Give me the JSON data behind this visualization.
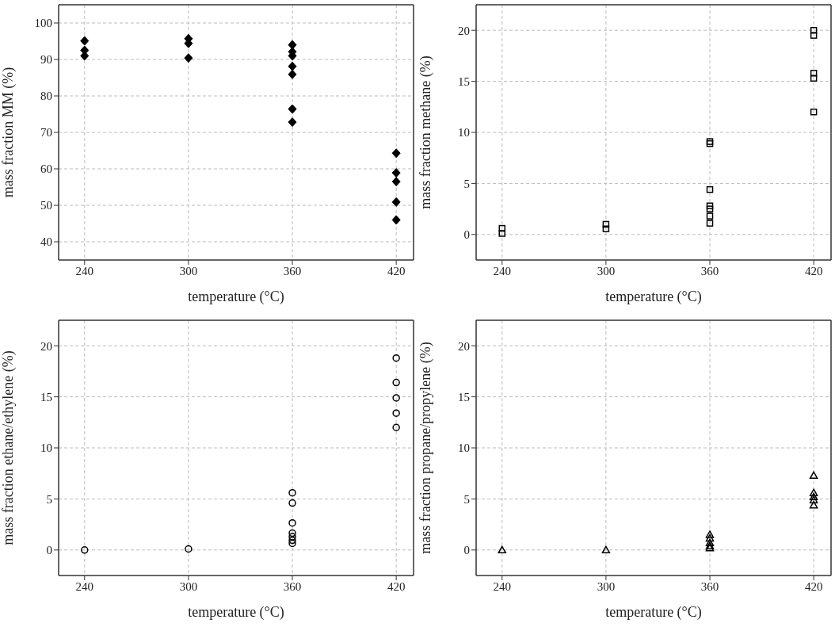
{
  "chart_data": [
    {
      "type": "scatter",
      "xlabel": "temperature (°C)",
      "ylabel": "mass fraction MM (%)",
      "marker": "diamond",
      "grid": true,
      "xlim": [
        225,
        430
      ],
      "xticks": [
        240,
        300,
        360,
        420
      ],
      "ylim": [
        35,
        105
      ],
      "yticks": [
        40,
        50,
        60,
        70,
        80,
        90,
        100
      ],
      "series": [
        {
          "color": "#000000",
          "x": [
            240,
            240,
            240,
            300,
            300,
            300,
            360,
            360,
            360,
            360,
            360,
            360,
            360,
            420,
            420,
            420,
            420,
            420
          ],
          "values": [
            95.1,
            92.5,
            91,
            95.7,
            94.4,
            90.4,
            94,
            92.1,
            91,
            88.1,
            85.9,
            76.4,
            72.8,
            64.3,
            58.9,
            56.5,
            50.9,
            46
          ]
        }
      ]
    },
    {
      "type": "scatter",
      "xlabel": "temperature (°C)",
      "ylabel": "mass fraction methane (%)",
      "marker": "square",
      "grid": true,
      "xlim": [
        225,
        430
      ],
      "xticks": [
        240,
        300,
        360,
        420
      ],
      "ylim": [
        -2.5,
        22.5
      ],
      "yticks": [
        0,
        5,
        10,
        15,
        20
      ],
      "series": [
        {
          "color": "#000000",
          "x": [
            240,
            240,
            300,
            300,
            360,
            360,
            360,
            360,
            360,
            360,
            360,
            420,
            420,
            420,
            420,
            420
          ],
          "values": [
            0.6,
            0.1,
            1.0,
            0.55,
            9.1,
            8.9,
            4.4,
            2.8,
            2.5,
            1.8,
            1.1,
            20,
            19.5,
            15.8,
            15.3,
            12
          ]
        }
      ]
    },
    {
      "type": "scatter",
      "xlabel": "temperature (°C)",
      "ylabel": "mass fraction ethane/ethylene (%)",
      "marker": "circle",
      "grid": true,
      "xlim": [
        225,
        430
      ],
      "xticks": [
        240,
        300,
        360,
        420
      ],
      "ylim": [
        -2.5,
        22.5
      ],
      "yticks": [
        0,
        5,
        10,
        15,
        20
      ],
      "series": [
        {
          "color": "#000000",
          "x": [
            240,
            300,
            360,
            360,
            360,
            360,
            360,
            360,
            360,
            420,
            420,
            420,
            420,
            420
          ],
          "values": [
            0,
            0.1,
            5.6,
            4.6,
            2.65,
            1.65,
            1.3,
            0.95,
            0.65,
            18.8,
            16.4,
            14.9,
            13.4,
            12
          ]
        }
      ]
    },
    {
      "type": "scatter",
      "xlabel": "temperature (°C)",
      "ylabel": "mass fraction propane/propylene (%)",
      "marker": "triangle",
      "grid": true,
      "xlim": [
        225,
        430
      ],
      "xticks": [
        240,
        300,
        360,
        420
      ],
      "ylim": [
        -2.5,
        22.5
      ],
      "yticks": [
        0,
        5,
        10,
        15,
        20
      ],
      "series": [
        {
          "color": "#000000",
          "x": [
            240,
            300,
            360,
            360,
            360,
            360,
            360,
            420,
            420,
            420,
            420,
            420
          ],
          "values": [
            0,
            0,
            1.5,
            1.15,
            0.7,
            0.4,
            0.2,
            7.3,
            5.6,
            5.2,
            4.9,
            4.4
          ]
        }
      ]
    }
  ]
}
